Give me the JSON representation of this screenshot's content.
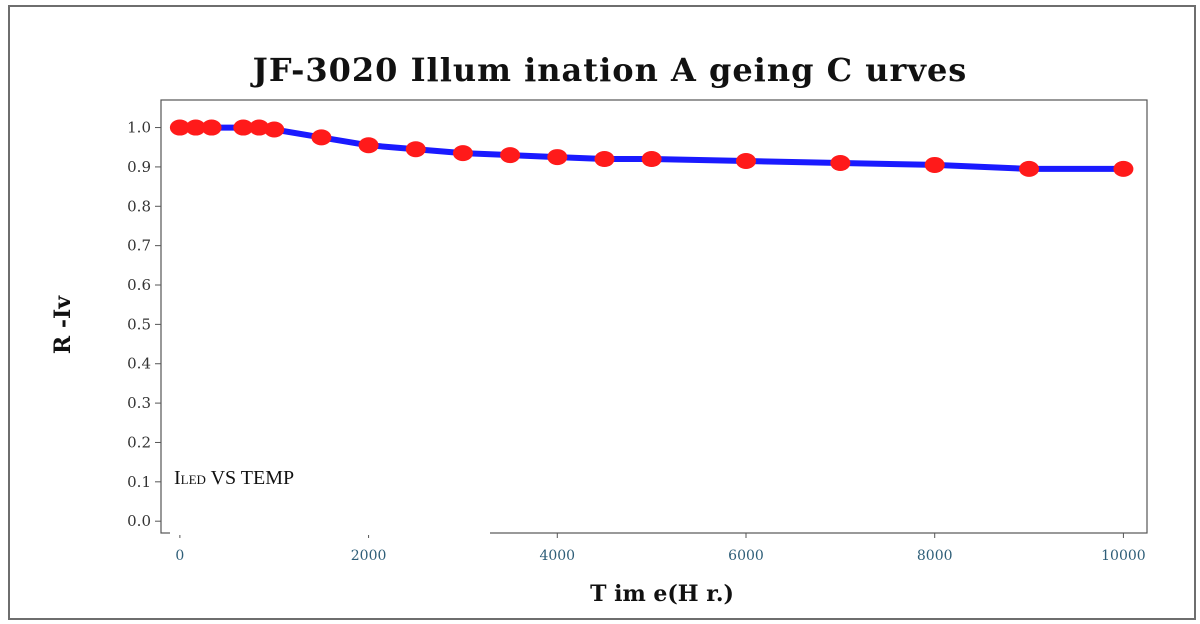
{
  "chart_data": {
    "type": "line",
    "title": "JF-3020 Illum ination A geing C urves",
    "xlabel": "T im e(H r.)",
    "ylabel": "R -Iv",
    "xlim": [
      -200,
      10250
    ],
    "ylim": [
      -0.03,
      1.07
    ],
    "xticks": [
      0,
      2000,
      4000,
      6000,
      8000,
      10000
    ],
    "xtick_labels": [
      "0",
      "2000",
      "4000",
      "6000",
      "8000",
      "10000"
    ],
    "yticks": [
      0.0,
      0.1,
      0.2,
      0.3,
      0.4,
      0.5,
      0.6,
      0.7,
      0.8,
      0.9,
      1.0
    ],
    "ytick_labels": [
      "0.0",
      "0.1",
      "0.2",
      "0.3",
      "0.4",
      "0.5",
      "0.6",
      "0.7",
      "0.8",
      "0.9",
      "1.0"
    ],
    "grid": false,
    "line_color": "#1a1aff",
    "marker_color": "#ff1a1a",
    "series": [
      {
        "x": [
          0,
          168,
          336,
          672,
          840,
          1000,
          1500,
          2000,
          2500,
          3000,
          3500,
          4000,
          4500,
          5000,
          6000,
          7000,
          8000,
          9000,
          10000
        ],
        "y": [
          1.0,
          1.0,
          1.0,
          1.0,
          1.0,
          0.995,
          0.975,
          0.955,
          0.945,
          0.935,
          0.93,
          0.925,
          0.92,
          0.92,
          0.915,
          0.91,
          0.905,
          0.895,
          0.895
        ]
      }
    ]
  },
  "overlay": {
    "label_prefix": "I",
    "label_sub": "LED",
    "label_suffix": " VS TEMP"
  }
}
